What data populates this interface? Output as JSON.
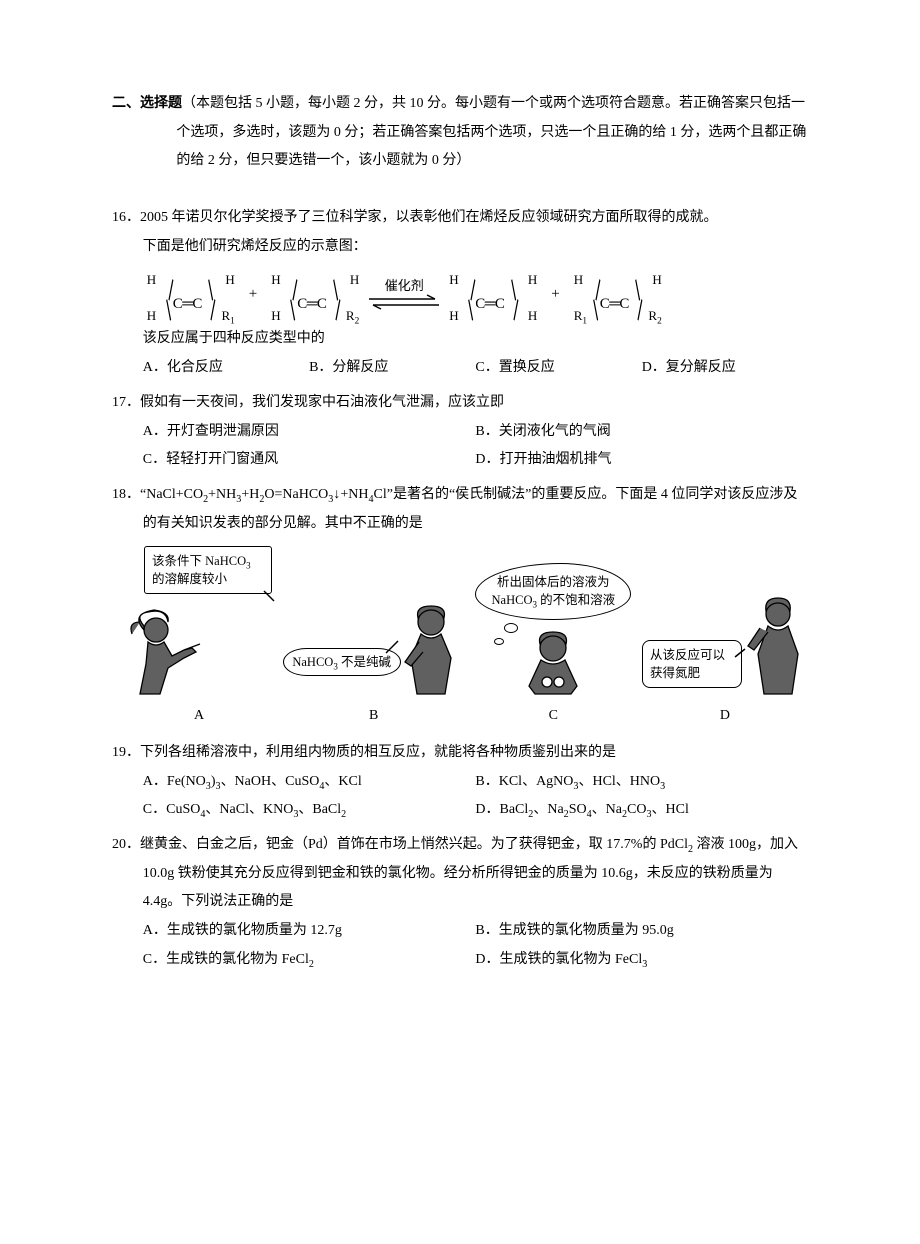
{
  "colors": {
    "text": "#000000",
    "bg": "#ffffff",
    "fig": "#606060"
  },
  "typography": {
    "body_family": "SimSun",
    "body_size_pt": 11,
    "line_height": 2.05,
    "sub_scale": 0.72
  },
  "section_header": {
    "title": "二、选择题",
    "instr": "（本题包括 5 小题，每小题 2 分，共 10 分。每小题有一个或两个选项符合题意。若正确答案只包括一个选项，多选时，该题为 0 分；若正确答案包括两个选项，只选一个且正确的给 1 分，选两个且都正确的给 2 分，但只要选错一个，该小题就为 0 分）"
  },
  "q16": {
    "num": "16．",
    "stem_a": "2005 年诺贝尔化学奖授予了三位科学家，以表彰他们在烯烃反应领域研究方面所取得的成就。",
    "stem_b": "下面是他们研究烯烃反应的示意图：",
    "followup": "该反应属于四种反应类型中的",
    "opts": {
      "a": "A．化合反应",
      "b": "B．分解反应",
      "c": "C．置换反应",
      "d": "D．复分解反应"
    },
    "diagram": {
      "catalyst_label": "催化剂",
      "plus": "+",
      "m1": {
        "ul": "H",
        "ll": "H",
        "ur": "H",
        "lr": "R₁"
      },
      "m2": {
        "ul": "H",
        "ll": "H",
        "ur": "H",
        "lr": "R₂"
      },
      "m3": {
        "ul": "H",
        "ll": "H",
        "ur": "H",
        "lr": "H"
      },
      "m4": {
        "ul": "H",
        "ll": "R₁",
        "ur": "H",
        "lr": "R₂"
      }
    }
  },
  "q17": {
    "num": "17．",
    "stem": "假如有一天夜间，我们发现家中石油液化气泄漏，应该立即",
    "opts": {
      "a": "A．开灯查明泄漏原因",
      "b": "B．关闭液化气的气阀",
      "c": "C．轻轻打开门窗通风",
      "d": "D．打开抽油烟机排气"
    }
  },
  "q18": {
    "num": "18．",
    "stem_a": "“NaCl+CO₂+NH₃+H₂O=NaHCO₃↓+NH₄Cl”是著名的“侯氏制碱法”的重要反应。下面是 4 位同学对该反应涉及的有关知识发表的部分见解。其中不正确的是",
    "labels": {
      "a": "A",
      "b": "B",
      "c": "C",
      "d": "D"
    },
    "bubbles": {
      "a1": "该条件下 NaHCO₃ 的溶解度较小",
      "b1": "NaHCO₃ 不是纯碱",
      "c1": "析出固体后的溶液为 NaHCO₃ 的不饱和溶液",
      "d1": "从该反应可以获得氮肥"
    }
  },
  "q19": {
    "num": "19．",
    "stem": "下列各组稀溶液中，利用组内物质的相互反应，就能将各种物质鉴别出来的是",
    "opts": {
      "a": "A．Fe(NO₃)₃、NaOH、CuSO₄、KCl",
      "b": "B．KCl、AgNO₃、HCl、HNO₃",
      "c": "C．CuSO₄、NaCl、KNO₃、BaCl₂",
      "d": "D．BaCl₂、Na₂SO₄、Na₂CO₃、HCl"
    }
  },
  "q20": {
    "num": "20．",
    "stem": "继黄金、白金之后，钯金（Pd）首饰在市场上悄然兴起。为了获得钯金，取 17.7%的 PdCl₂ 溶液 100g，加入 10.0g 铁粉使其充分反应得到钯金和铁的氯化物。经分析所得钯金的质量为 10.6g，未反应的铁粉质量为 4.4g。下列说法正确的是",
    "opts": {
      "a": "A．生成铁的氯化物质量为 12.7g",
      "b": "B．生成铁的氯化物质量为 95.0g",
      "c": "C．生成铁的氯化物为 FeCl₂",
      "d": "D．生成铁的氯化物为 FeCl₃"
    }
  }
}
